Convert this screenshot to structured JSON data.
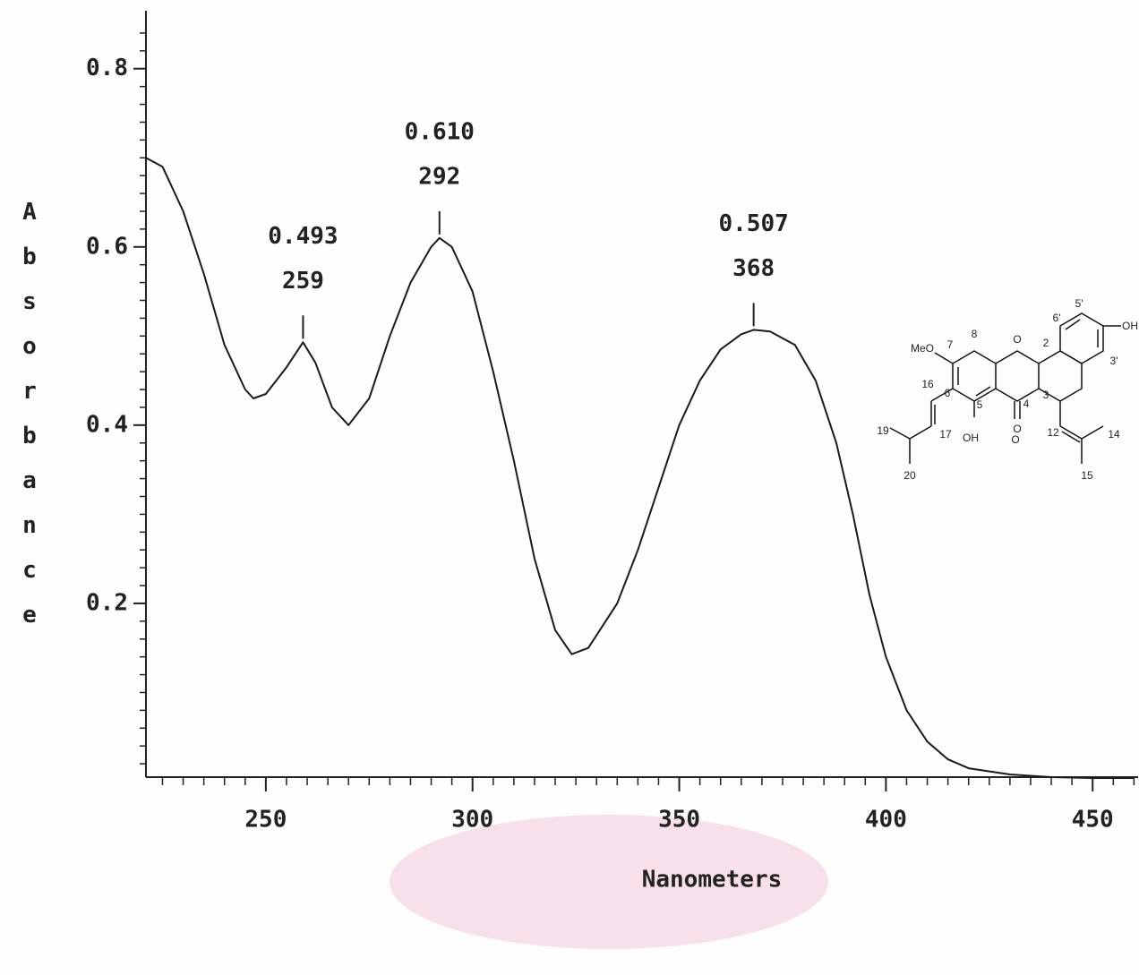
{
  "chart_data": {
    "type": "line",
    "xlabel": "Nanometers",
    "ylabel": "Absorbance",
    "color": "#1a1a1a",
    "x": [
      221,
      225,
      230,
      235,
      240,
      245,
      247,
      250,
      255,
      259,
      262,
      266,
      270,
      275,
      280,
      285,
      290,
      292,
      295,
      300,
      305,
      310,
      315,
      320,
      324,
      328,
      335,
      340,
      345,
      350,
      355,
      360,
      365,
      368,
      372,
      378,
      383,
      388,
      392,
      396,
      400,
      405,
      410,
      415,
      420,
      430,
      440,
      450,
      460
    ],
    "values": [
      0.7,
      0.69,
      0.64,
      0.57,
      0.49,
      0.44,
      0.43,
      0.435,
      0.465,
      0.493,
      0.47,
      0.42,
      0.4,
      0.43,
      0.5,
      0.56,
      0.6,
      0.61,
      0.6,
      0.55,
      0.46,
      0.36,
      0.25,
      0.17,
      0.143,
      0.15,
      0.2,
      0.26,
      0.33,
      0.4,
      0.45,
      0.485,
      0.502,
      0.507,
      0.505,
      0.49,
      0.45,
      0.38,
      0.3,
      0.21,
      0.14,
      0.08,
      0.045,
      0.025,
      0.015,
      0.008,
      0.005,
      0.004,
      0.004
    ],
    "xlim": [
      221,
      461
    ],
    "ylim": [
      0,
      0.86
    ],
    "xticks": [
      250,
      300,
      350,
      400,
      450
    ],
    "yticks": [
      0.2,
      0.4,
      0.6,
      0.8
    ],
    "xminorticks": [
      225,
      230,
      235,
      240,
      245,
      255,
      260,
      265,
      270,
      275,
      280,
      285,
      290,
      295,
      305,
      310,
      315,
      320,
      325,
      330,
      335,
      340,
      345,
      355,
      360,
      365,
      370,
      375,
      380,
      385,
      390,
      395,
      405,
      410,
      415,
      420,
      425,
      430,
      435,
      440,
      445,
      455,
      460
    ],
    "yminorticks": [
      0.02,
      0.04,
      0.06,
      0.08,
      0.1,
      0.12,
      0.14,
      0.16,
      0.18,
      0.22,
      0.24,
      0.26,
      0.28,
      0.3,
      0.32,
      0.34,
      0.36,
      0.38,
      0.42,
      0.44,
      0.46,
      0.48,
      0.5,
      0.52,
      0.54,
      0.56,
      0.58,
      0.62,
      0.64,
      0.66,
      0.68,
      0.7,
      0.72,
      0.74,
      0.76,
      0.78,
      0.82,
      0.84
    ],
    "peaks": {
      "x": [
        259,
        292,
        368
      ],
      "values": [
        0.493,
        0.61,
        0.507
      ],
      "value_labels": [
        "0.493",
        "0.610",
        "0.507"
      ]
    },
    "structure_labels": [
      "MeO",
      "7",
      "8",
      "O",
      "2",
      "5'",
      "6'",
      "OH",
      "3'",
      "3",
      "6",
      "16",
      "4",
      "O",
      "12",
      "14",
      "19",
      "17",
      "5",
      "OH",
      "O",
      "20",
      "15"
    ]
  }
}
